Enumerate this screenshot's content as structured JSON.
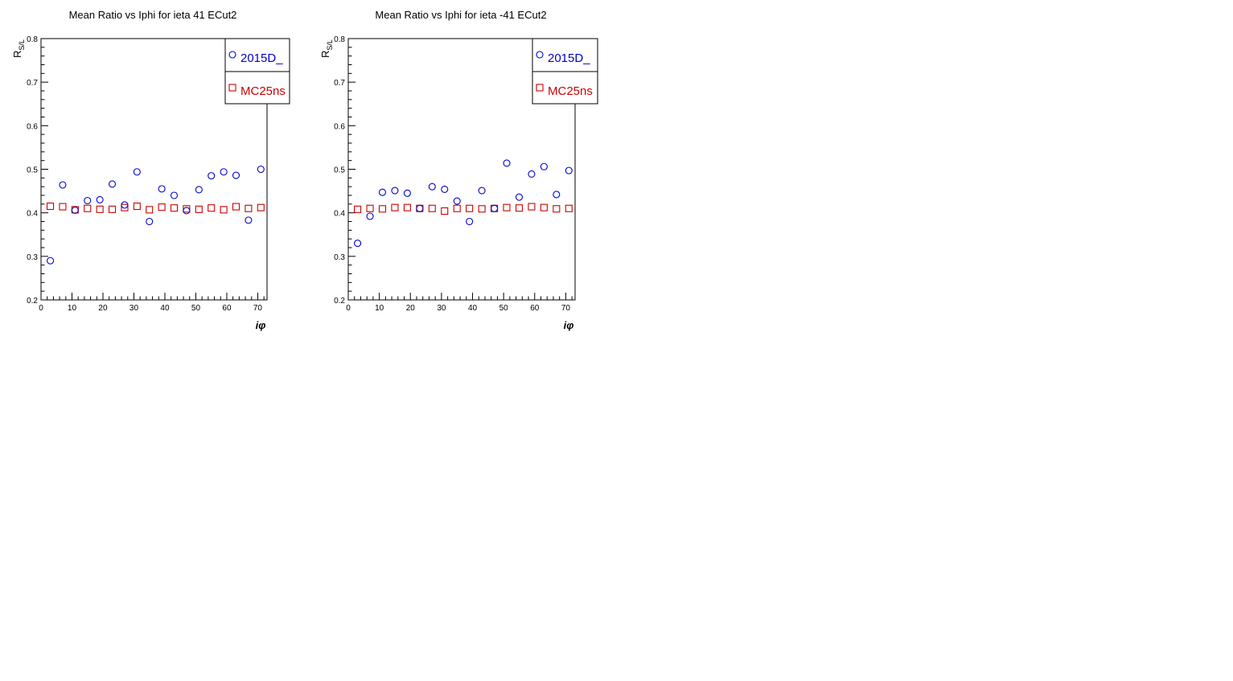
{
  "chart_data": [
    {
      "type": "scatter",
      "title": "Mean Ratio vs Iphi for ieta 41 ECut2",
      "xlabel": "iφ",
      "ylabel": "R",
      "ylabel_sub": "S/L",
      "xlim": [
        0,
        73
      ],
      "ylim": [
        0.2,
        0.8
      ],
      "xticks": [
        0,
        10,
        20,
        30,
        40,
        50,
        60,
        70
      ],
      "yticks": [
        0.2,
        0.3,
        0.4,
        0.5,
        0.6,
        0.7,
        0.8
      ],
      "grid": false,
      "legend_position": "top-right",
      "x": [
        3,
        7,
        11,
        15,
        19,
        23,
        27,
        31,
        35,
        39,
        43,
        47,
        51,
        55,
        59,
        63,
        67,
        71
      ],
      "series": [
        {
          "name": "2015D_",
          "marker": "circle",
          "color": "#0000cc",
          "values": [
            0.29,
            0.464,
            0.406,
            0.428,
            0.43,
            0.466,
            0.418,
            0.494,
            0.38,
            0.455,
            0.44,
            0.405,
            0.453,
            0.485,
            0.494,
            0.486,
            0.383,
            0.5
          ]
        },
        {
          "name": "MC25ns",
          "marker": "square",
          "color": "#cc0000",
          "values": [
            0.415,
            0.414,
            0.407,
            0.41,
            0.408,
            0.408,
            0.412,
            0.415,
            0.407,
            0.413,
            0.411,
            0.409,
            0.408,
            0.411,
            0.407,
            0.414,
            0.41,
            0.412
          ]
        }
      ]
    },
    {
      "type": "scatter",
      "title": "Mean Ratio vs Iphi for ieta -41 ECut2",
      "xlabel": "iφ",
      "ylabel": "R",
      "ylabel_sub": "S/L",
      "xlim": [
        0,
        73
      ],
      "ylim": [
        0.2,
        0.8
      ],
      "xticks": [
        0,
        10,
        20,
        30,
        40,
        50,
        60,
        70
      ],
      "yticks": [
        0.2,
        0.3,
        0.4,
        0.5,
        0.6,
        0.7,
        0.8
      ],
      "grid": false,
      "legend_position": "top-right",
      "x": [
        3,
        7,
        11,
        15,
        19,
        23,
        27,
        31,
        35,
        39,
        43,
        47,
        51,
        55,
        59,
        63,
        67,
        71
      ],
      "series": [
        {
          "name": "2015D_",
          "marker": "circle",
          "color": "#0000cc",
          "values": [
            0.33,
            0.392,
            0.447,
            0.451,
            0.445,
            0.41,
            0.46,
            0.454,
            0.427,
            0.38,
            0.451,
            0.41,
            0.514,
            0.436,
            0.489,
            0.506,
            0.442,
            0.497
          ]
        },
        {
          "name": "MC25ns",
          "marker": "square",
          "color": "#cc0000",
          "values": [
            0.408,
            0.41,
            0.409,
            0.412,
            0.412,
            0.41,
            0.41,
            0.404,
            0.41,
            0.41,
            0.409,
            0.41,
            0.412,
            0.411,
            0.414,
            0.412,
            0.409,
            0.41
          ]
        }
      ]
    }
  ]
}
